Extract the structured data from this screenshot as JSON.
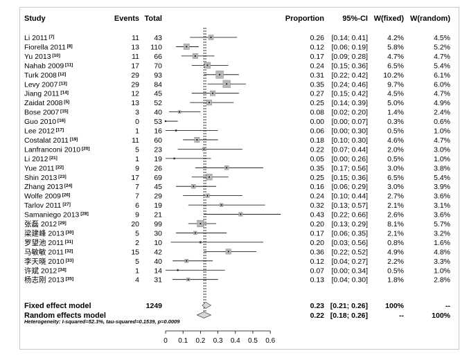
{
  "columns": {
    "study": "Study",
    "events": "Events",
    "total": "Total",
    "proportion": "Proportion",
    "ci": "95%-CI",
    "wfixed": "W(fixed)",
    "wrandom": "W(random)"
  },
  "rows": [
    {
      "study": "Li 2011",
      "ref": "[7]",
      "events": "11",
      "total": "43",
      "prop": "0.26",
      "ci": "[0.14; 0.41]",
      "wf": "4.2%",
      "wr": "4.5%"
    },
    {
      "study": "Fiorella 2011",
      "ref": "[8]",
      "events": "13",
      "total": "110",
      "prop": "0.12",
      "ci": "[0.06; 0.19]",
      "wf": "5.8%",
      "wr": "5.2%"
    },
    {
      "study": "Yu 2013",
      "ref": "[10]",
      "events": "11",
      "total": "66",
      "prop": "0.17",
      "ci": "[0.09; 0.28]",
      "wf": "4.7%",
      "wr": "4.7%"
    },
    {
      "study": "Nahab 2009",
      "ref": "[11]",
      "events": "17",
      "total": "70",
      "prop": "0.24",
      "ci": "[0.15; 0.36]",
      "wf": "6.5%",
      "wr": "5.4%"
    },
    {
      "study": "Turk 2008",
      "ref": "[12]",
      "events": "29",
      "total": "93",
      "prop": "0.31",
      "ci": "[0.22; 0.42]",
      "wf": "10.2%",
      "wr": "6.1%"
    },
    {
      "study": "Levy 2007",
      "ref": "[13]",
      "events": "29",
      "total": "84",
      "prop": "0.35",
      "ci": "[0.24; 0.46]",
      "wf": "9.7%",
      "wr": "6.0%"
    },
    {
      "study": "Jiang 2011",
      "ref": "[14]",
      "events": "12",
      "total": "45",
      "prop": "0.27",
      "ci": "[0.15; 0.42]",
      "wf": "4.5%",
      "wr": "4.7%"
    },
    {
      "study": "Zaidat 2008",
      "ref": "[5]",
      "events": "13",
      "total": "52",
      "prop": "0.25",
      "ci": "[0.14; 0.39]",
      "wf": "5.0%",
      "wr": "4.9%"
    },
    {
      "study": "Bose 2007",
      "ref": "[15]",
      "events": "3",
      "total": "40",
      "prop": "0.08",
      "ci": "[0.02; 0.20]",
      "wf": "1.4%",
      "wr": "2.4%"
    },
    {
      "study": "Guo 2010",
      "ref": "[16]",
      "events": "0",
      "total": "53",
      "prop": "0.00",
      "ci": "[0.00; 0.07]",
      "wf": "0.3%",
      "wr": "0.6%"
    },
    {
      "study": "Lee 2012",
      "ref": "[17]",
      "events": "1",
      "total": "16",
      "prop": "0.06",
      "ci": "[0.00; 0.30]",
      "wf": "0.5%",
      "wr": "1.0%"
    },
    {
      "study": "Costalat 2011",
      "ref": "[19]",
      "events": "11",
      "total": "60",
      "prop": "0.18",
      "ci": "[0.10; 0.30]",
      "wf": "4.6%",
      "wr": "4.7%"
    },
    {
      "study": "Lanfranconi 2010",
      "ref": "[20]",
      "events": "5",
      "total": "23",
      "prop": "0.22",
      "ci": "[0.07; 0.44]",
      "wf": "2.0%",
      "wr": "3.0%"
    },
    {
      "study": "Li 2012",
      "ref": "[21]",
      "events": "1",
      "total": "19",
      "prop": "0.05",
      "ci": "[0.00; 0.26]",
      "wf": "0.5%",
      "wr": "1.0%"
    },
    {
      "study": "Yue 2011",
      "ref": "[22]",
      "events": "9",
      "total": "26",
      "prop": "0.35",
      "ci": "[0.17; 0.56]",
      "wf": "3.0%",
      "wr": "3.8%"
    },
    {
      "study": "Shin 2013",
      "ref": "[23]",
      "events": "17",
      "total": "69",
      "prop": "0.25",
      "ci": "[0.15; 0.36]",
      "wf": "6.5%",
      "wr": "5.4%"
    },
    {
      "study": "Zhang 2013",
      "ref": "[24]",
      "events": "7",
      "total": "45",
      "prop": "0.16",
      "ci": "[0.06; 0.29]",
      "wf": "3.0%",
      "wr": "3.9%"
    },
    {
      "study": "Wolfe 2009",
      "ref": "[26]",
      "events": "7",
      "total": "29",
      "prop": "0.24",
      "ci": "[0.10; 0.44]",
      "wf": "2.7%",
      "wr": "3.6%"
    },
    {
      "study": "Tarlov 2011",
      "ref": "[27]",
      "events": "6",
      "total": "19",
      "prop": "0.32",
      "ci": "[0.13; 0.57]",
      "wf": "2.1%",
      "wr": "3.1%"
    },
    {
      "study": "Samaniego 2013",
      "ref": "[28]",
      "events": "9",
      "total": "21",
      "prop": "0.43",
      "ci": "[0.22; 0.66]",
      "wf": "2.6%",
      "wr": "3.6%"
    },
    {
      "study": "张磊 2012",
      "ref": "[29]",
      "events": "20",
      "total": "99",
      "prop": "0.20",
      "ci": "[0.13; 0.29]",
      "wf": "8.1%",
      "wr": "5.7%"
    },
    {
      "study": "梁建峰 2013",
      "ref": "[30]",
      "events": "5",
      "total": "30",
      "prop": "0.17",
      "ci": "[0.06; 0.35]",
      "wf": "2.1%",
      "wr": "3.2%"
    },
    {
      "study": "罗望池 2011",
      "ref": "[31]",
      "events": "2",
      "total": "10",
      "prop": "0.20",
      "ci": "[0.03; 0.56]",
      "wf": "0.8%",
      "wr": "1.6%"
    },
    {
      "study": "马敏敏 2011",
      "ref": "[32]",
      "events": "15",
      "total": "42",
      "prop": "0.36",
      "ci": "[0.22; 0.52]",
      "wf": "4.9%",
      "wr": "4.8%"
    },
    {
      "study": "李天晓 2010",
      "ref": "[33]",
      "events": "5",
      "total": "40",
      "prop": "0.12",
      "ci": "[0.04; 0.27]",
      "wf": "2.2%",
      "wr": "3.3%"
    },
    {
      "study": "许斌 2012",
      "ref": "[34]",
      "events": "1",
      "total": "14",
      "prop": "0.07",
      "ci": "[0.00; 0.34]",
      "wf": "0.5%",
      "wr": "1.0%"
    },
    {
      "study": "杨志刚 2013",
      "ref": "[35]",
      "events": "4",
      "total": "31",
      "prop": "0.13",
      "ci": "[0.04; 0.30]",
      "wf": "1.8%",
      "wr": "2.8%"
    }
  ],
  "summary": [
    {
      "label": "Fixed effect model",
      "total": "1249",
      "prop": "0.23",
      "ci": "[0.21; 0.26]",
      "wf": "100%",
      "wr": "--"
    },
    {
      "label": "Random effects model",
      "total": "",
      "prop": "0.22",
      "ci": "[0.18; 0.26]",
      "wf": "--",
      "wr": "100%"
    }
  ],
  "heterogeneity": "Heterogeneity: I-squared=52.3%, tau-squared=0.1539, p=0.0009",
  "chart_data": {
    "type": "scatter",
    "xlim": [
      0,
      0.6
    ],
    "xticks": [
      "0",
      "0.1",
      "0.2",
      "0.3",
      "0.4",
      "0.5",
      "0.6"
    ],
    "fixed_estimate": 0.23,
    "random_estimate": 0.22,
    "studies": [
      {
        "est": 0.26,
        "lo": 0.14,
        "hi": 0.41,
        "weight": 4.2
      },
      {
        "est": 0.12,
        "lo": 0.06,
        "hi": 0.19,
        "weight": 5.8
      },
      {
        "est": 0.17,
        "lo": 0.09,
        "hi": 0.28,
        "weight": 4.7
      },
      {
        "est": 0.24,
        "lo": 0.15,
        "hi": 0.36,
        "weight": 6.5
      },
      {
        "est": 0.31,
        "lo": 0.22,
        "hi": 0.42,
        "weight": 10.2
      },
      {
        "est": 0.35,
        "lo": 0.24,
        "hi": 0.46,
        "weight": 9.7
      },
      {
        "est": 0.27,
        "lo": 0.15,
        "hi": 0.42,
        "weight": 4.5
      },
      {
        "est": 0.25,
        "lo": 0.14,
        "hi": 0.39,
        "weight": 5.0
      },
      {
        "est": 0.08,
        "lo": 0.02,
        "hi": 0.2,
        "weight": 1.4
      },
      {
        "est": 0.0,
        "lo": 0.0,
        "hi": 0.07,
        "weight": 0.3
      },
      {
        "est": 0.06,
        "lo": 0.0,
        "hi": 0.3,
        "weight": 0.5
      },
      {
        "est": 0.18,
        "lo": 0.1,
        "hi": 0.3,
        "weight": 4.6
      },
      {
        "est": 0.22,
        "lo": 0.07,
        "hi": 0.44,
        "weight": 2.0
      },
      {
        "est": 0.05,
        "lo": 0.0,
        "hi": 0.26,
        "weight": 0.5
      },
      {
        "est": 0.35,
        "lo": 0.17,
        "hi": 0.56,
        "weight": 3.0
      },
      {
        "est": 0.25,
        "lo": 0.15,
        "hi": 0.36,
        "weight": 6.5
      },
      {
        "est": 0.16,
        "lo": 0.06,
        "hi": 0.29,
        "weight": 3.0
      },
      {
        "est": 0.24,
        "lo": 0.1,
        "hi": 0.44,
        "weight": 2.7
      },
      {
        "est": 0.32,
        "lo": 0.13,
        "hi": 0.57,
        "weight": 2.1
      },
      {
        "est": 0.43,
        "lo": 0.22,
        "hi": 0.66,
        "weight": 2.6
      },
      {
        "est": 0.2,
        "lo": 0.13,
        "hi": 0.29,
        "weight": 8.1
      },
      {
        "est": 0.17,
        "lo": 0.06,
        "hi": 0.35,
        "weight": 2.1
      },
      {
        "est": 0.2,
        "lo": 0.03,
        "hi": 0.56,
        "weight": 0.8
      },
      {
        "est": 0.36,
        "lo": 0.22,
        "hi": 0.52,
        "weight": 4.9
      },
      {
        "est": 0.12,
        "lo": 0.04,
        "hi": 0.27,
        "weight": 2.2
      },
      {
        "est": 0.07,
        "lo": 0.0,
        "hi": 0.34,
        "weight": 0.5
      },
      {
        "est": 0.13,
        "lo": 0.04,
        "hi": 0.3,
        "weight": 1.8
      }
    ],
    "summaries": [
      {
        "est": 0.23,
        "lo": 0.21,
        "hi": 0.26
      },
      {
        "est": 0.22,
        "lo": 0.18,
        "hi": 0.26
      }
    ]
  }
}
